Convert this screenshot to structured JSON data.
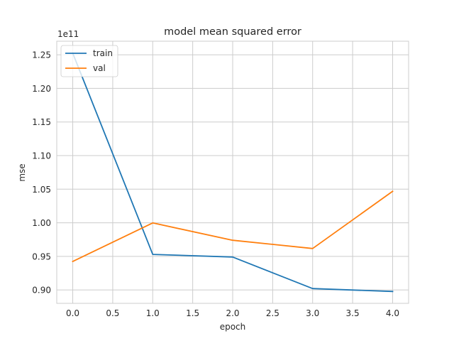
{
  "chart_data": {
    "type": "line",
    "title": "model mean squared error",
    "xlabel": "epoch",
    "ylabel": "mse",
    "y_offset_label": "1e11",
    "xlim": [
      -0.2,
      4.2
    ],
    "ylim": [
      0.8801,
      1.2702
    ],
    "x_ticks": [
      0.0,
      0.5,
      1.0,
      1.5,
      2.0,
      2.5,
      3.0,
      3.5,
      4.0
    ],
    "x_tick_labels": [
      "0.0",
      "0.5",
      "1.0",
      "1.5",
      "2.0",
      "2.5",
      "3.0",
      "3.5",
      "4.0"
    ],
    "y_ticks": [
      0.9,
      0.95,
      1.0,
      1.05,
      1.1,
      1.15,
      1.2,
      1.25
    ],
    "y_tick_labels": [
      "0.90",
      "0.95",
      "1.00",
      "1.05",
      "1.10",
      "1.15",
      "1.20",
      "1.25"
    ],
    "grid": true,
    "legend_position": "top-left",
    "x": [
      0,
      1,
      2,
      3,
      4
    ],
    "series": [
      {
        "name": "train",
        "color": "#1f77b4",
        "values": [
          1.2525,
          0.9529,
          0.949,
          0.9021,
          0.8978
        ]
      },
      {
        "name": "val",
        "color": "#ff7f0e",
        "values": [
          0.9425,
          0.9998,
          0.974,
          0.9617,
          1.0468
        ]
      }
    ]
  }
}
